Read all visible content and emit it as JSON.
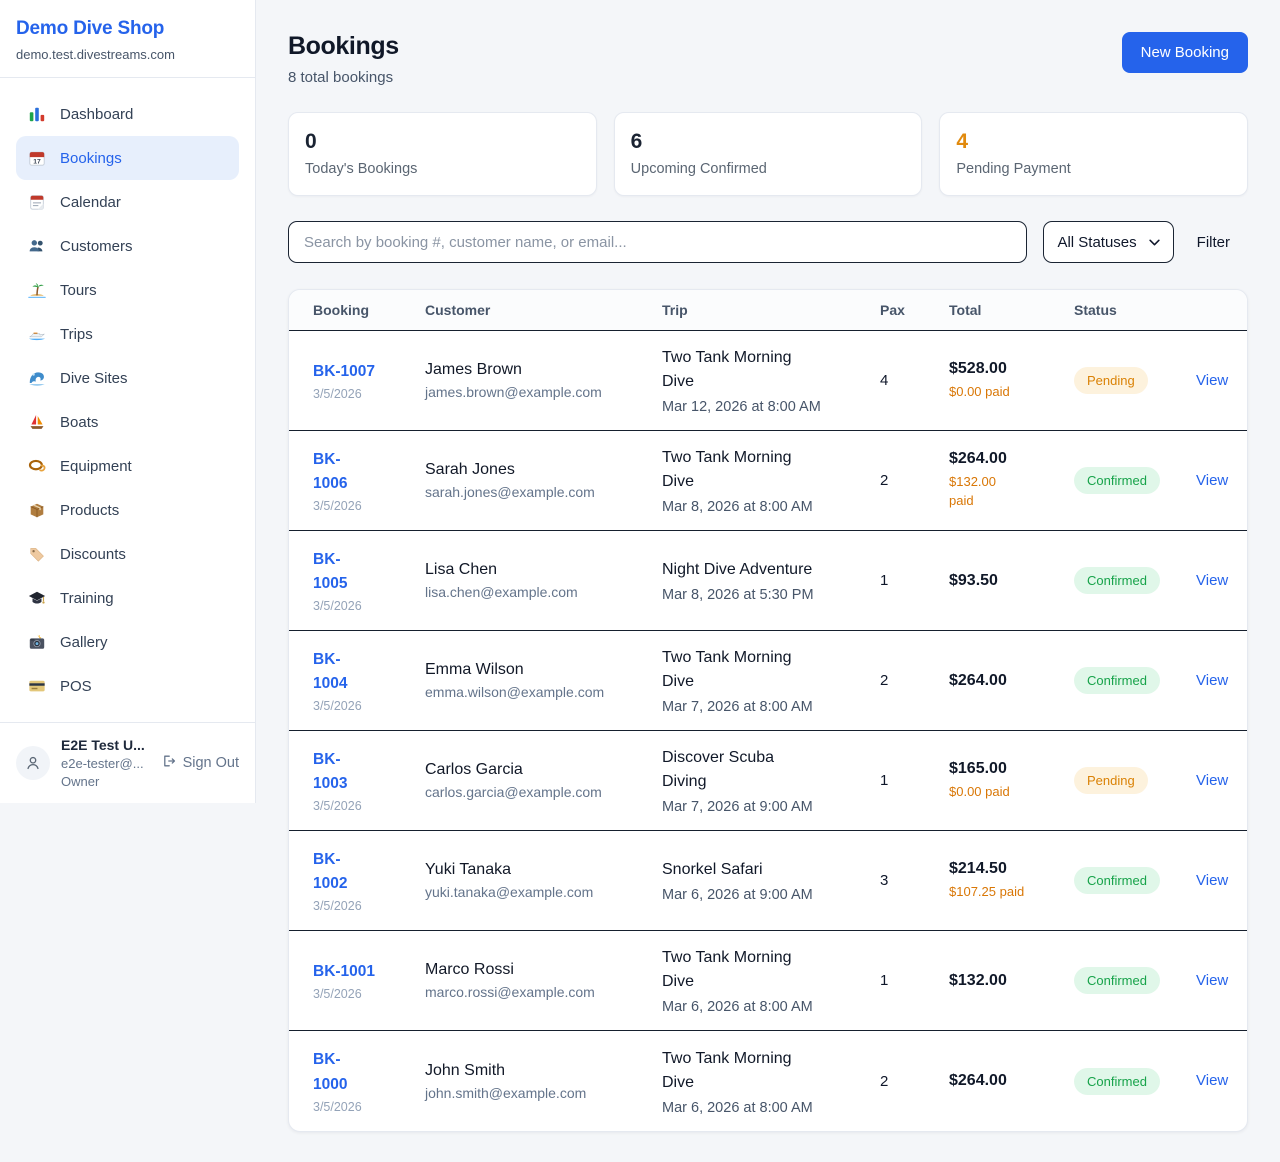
{
  "sidebar": {
    "shop_name": "Demo Dive Shop",
    "shop_domain": "demo.test.divestreams.com",
    "nav_items": [
      {
        "label": "Dashboard",
        "icon": "bar-chart",
        "active": false
      },
      {
        "label": "Bookings",
        "icon": "calendar-17",
        "active": true
      },
      {
        "label": "Calendar",
        "icon": "tear-calendar",
        "active": false
      },
      {
        "label": "Customers",
        "icon": "people",
        "active": false
      },
      {
        "label": "Tours",
        "icon": "island",
        "active": false
      },
      {
        "label": "Trips",
        "icon": "speedboat",
        "active": false
      },
      {
        "label": "Dive Sites",
        "icon": "wave",
        "active": false
      },
      {
        "label": "Boats",
        "icon": "sailboat",
        "active": false
      },
      {
        "label": "Equipment",
        "icon": "dive-mask",
        "active": false
      },
      {
        "label": "Products",
        "icon": "package",
        "active": false
      },
      {
        "label": "Discounts",
        "icon": "tag",
        "active": false
      },
      {
        "label": "Training",
        "icon": "graduation-cap",
        "active": false
      },
      {
        "label": "Gallery",
        "icon": "camera",
        "active": false
      },
      {
        "label": "POS",
        "icon": "credit-card",
        "active": false
      }
    ],
    "user": {
      "name": "E2E Test U...",
      "email": "e2e-tester@...",
      "role": "Owner",
      "sign_out_label": "Sign Out"
    }
  },
  "header": {
    "title": "Bookings",
    "subtitle": "8 total bookings",
    "new_booking_label": "New Booking"
  },
  "stats": [
    {
      "value": "0",
      "label": "Today's Bookings",
      "highlight": false
    },
    {
      "value": "6",
      "label": "Upcoming Confirmed",
      "highlight": false
    },
    {
      "value": "4",
      "label": "Pending Payment",
      "highlight": true
    }
  ],
  "filters": {
    "search_placeholder": "Search by booking #, customer name, or email...",
    "status_selected": "All Statuses",
    "filter_label": "Filter"
  },
  "table": {
    "columns": [
      "Booking",
      "Customer",
      "Trip",
      "Pax",
      "Total",
      "Status"
    ],
    "view_label": "View",
    "rows": [
      {
        "id": "BK-1007",
        "date": "3/5/2026",
        "customer": "James Brown",
        "email": "james.brown@example.com",
        "trip": "Two Tank Morning\nDive",
        "when": "Mar 12, 2026 at 8:00 AM",
        "pax": "4",
        "total": "$528.00",
        "paid": "$0.00 paid",
        "status": "Pending"
      },
      {
        "id": "BK-\n1006",
        "date": "3/5/2026",
        "customer": "Sarah Jones",
        "email": "sarah.jones@example.com",
        "trip": "Two Tank Morning\nDive",
        "when": "Mar 8, 2026 at 8:00 AM",
        "pax": "2",
        "total": "$264.00",
        "paid": "$132.00\npaid",
        "status": "Confirmed"
      },
      {
        "id": "BK-\n1005",
        "date": "3/5/2026",
        "customer": "Lisa Chen",
        "email": "lisa.chen@example.com",
        "trip": "Night Dive Adventure",
        "when": "Mar 8, 2026 at 5:30 PM",
        "pax": "1",
        "total": "$93.50",
        "paid": null,
        "status": "Confirmed"
      },
      {
        "id": "BK-\n1004",
        "date": "3/5/2026",
        "customer": "Emma Wilson",
        "email": "emma.wilson@example.com",
        "trip": "Two Tank Morning\nDive",
        "when": "Mar 7, 2026 at 8:00 AM",
        "pax": "2",
        "total": "$264.00",
        "paid": null,
        "status": "Confirmed"
      },
      {
        "id": "BK-\n1003",
        "date": "3/5/2026",
        "customer": "Carlos Garcia",
        "email": "carlos.garcia@example.com",
        "trip": "Discover Scuba\nDiving",
        "when": "Mar 7, 2026 at 9:00 AM",
        "pax": "1",
        "total": "$165.00",
        "paid": "$0.00 paid",
        "status": "Pending"
      },
      {
        "id": "BK-\n1002",
        "date": "3/5/2026",
        "customer": "Yuki Tanaka",
        "email": "yuki.tanaka@example.com",
        "trip": "Snorkel Safari",
        "when": "Mar 6, 2026 at 9:00 AM",
        "pax": "3",
        "total": "$214.50",
        "paid": "$107.25 paid",
        "status": "Confirmed"
      },
      {
        "id": "BK-1001",
        "date": "3/5/2026",
        "customer": "Marco Rossi",
        "email": "marco.rossi@example.com",
        "trip": "Two Tank Morning\nDive",
        "when": "Mar 6, 2026 at 8:00 AM",
        "pax": "1",
        "total": "$132.00",
        "paid": null,
        "status": "Confirmed"
      },
      {
        "id": "BK-\n1000",
        "date": "3/5/2026",
        "customer": "John Smith",
        "email": "john.smith@example.com",
        "trip": "Two Tank Morning\nDive",
        "when": "Mar 6, 2026 at 8:00 AM",
        "pax": "2",
        "total": "$264.00",
        "paid": null,
        "status": "Confirmed"
      }
    ]
  },
  "colors": {
    "accent_blue": "#2563eb",
    "pending_text": "#da8206",
    "pending_bg": "#fdf2dd",
    "confirmed_text": "#17a34a",
    "confirmed_bg": "#e0f7e9",
    "paid_orange": "#d97706",
    "stat_highlight": "#e18a0e"
  }
}
